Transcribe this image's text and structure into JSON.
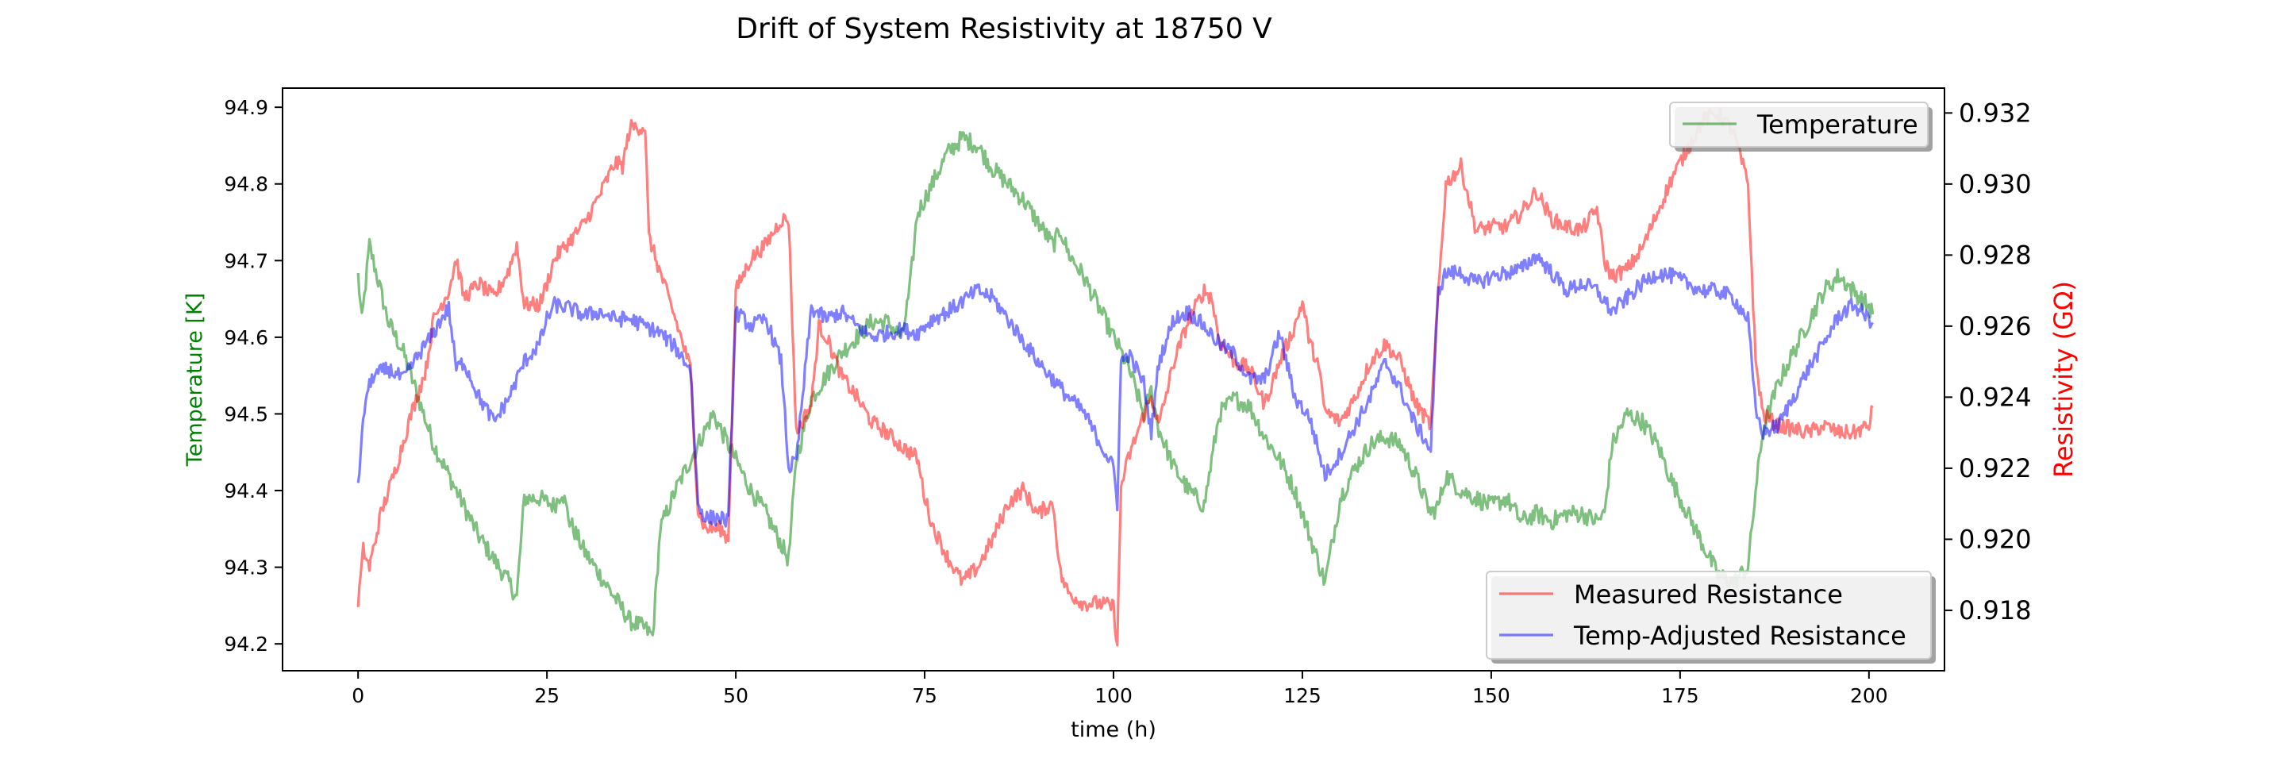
{
  "chart_data": {
    "type": "line",
    "title": "Drift of System Resistivity at 18750 V",
    "xlabel": "time (h)",
    "ylabel_left": "Temperature [K]",
    "ylabel_right": "Resistivity (GΩ)",
    "xlim": [
      -10,
      210
    ],
    "ylim_left": [
      94.165,
      94.925
    ],
    "ylim_right": [
      0.9163,
      0.9327
    ],
    "x_ticks": [
      0,
      25,
      50,
      75,
      100,
      125,
      150,
      175,
      200
    ],
    "x_tick_labels": [
      "0",
      "25",
      "50",
      "75",
      "100",
      "125",
      "150",
      "175",
      "200"
    ],
    "y_left_ticks": [
      94.2,
      94.3,
      94.4,
      94.5,
      94.6,
      94.7,
      94.8,
      94.9
    ],
    "y_left_tick_labels": [
      "94.2",
      "94.3",
      "94.4",
      "94.5",
      "94.6",
      "94.7",
      "94.8",
      "94.9"
    ],
    "y_right_ticks": [
      0.918,
      0.92,
      0.922,
      0.924,
      0.926,
      0.928,
      0.93,
      0.932
    ],
    "y_right_tick_labels": [
      "0.918",
      "0.920",
      "0.922",
      "0.924",
      "0.926",
      "0.928",
      "0.930",
      "0.932"
    ],
    "grid": false,
    "legend_left_axis": {
      "placement": "top-right",
      "entries": [
        "Temperature"
      ]
    },
    "legend_right_axis": {
      "placement": "bottom-right",
      "entries": [
        "Measured Resistance",
        "Temp-Adjusted Resistance"
      ]
    },
    "colors": {
      "temperature": "#008000",
      "measured": "#ff0000",
      "adjusted": "#0000ff",
      "left_axis_label": "#008000",
      "right_axis_label": "#ff0000"
    },
    "series": [
      {
        "name": "Temperature",
        "axis": "left",
        "color": "#008000",
        "x": [
          0,
          0.5,
          1.5,
          2.5,
          4,
          6,
          8,
          10,
          12,
          14,
          16,
          18,
          20,
          21,
          22,
          24,
          26,
          27,
          28,
          30,
          32,
          34,
          36,
          38,
          39,
          40,
          42,
          44,
          46,
          47,
          48,
          50,
          52,
          54,
          56,
          57,
          58,
          60,
          62,
          64,
          66,
          68,
          70,
          72,
          73,
          74,
          76,
          78,
          80,
          82,
          84,
          86,
          88,
          90,
          92,
          93,
          94,
          96,
          98,
          100,
          102,
          104,
          105,
          106,
          108,
          110,
          112,
          114,
          116,
          118,
          120,
          122,
          124,
          126,
          128,
          130,
          132,
          134,
          136,
          138,
          140,
          142,
          143,
          144,
          146,
          148,
          150,
          152,
          154,
          156,
          158,
          160,
          162,
          164,
          165,
          166,
          168,
          170,
          172,
          174,
          176,
          178,
          180,
          182,
          184,
          185,
          186,
          188,
          190,
          192,
          194,
          196,
          198,
          200,
          200.5
        ],
        "values": [
          94.68,
          94.62,
          94.72,
          94.68,
          94.62,
          94.58,
          94.52,
          94.46,
          94.42,
          94.38,
          94.34,
          94.31,
          94.28,
          94.26,
          94.39,
          94.39,
          94.38,
          94.4,
          94.36,
          94.32,
          94.29,
          94.26,
          94.23,
          94.22,
          94.21,
          94.35,
          94.4,
          94.44,
          94.48,
          94.5,
          94.48,
          94.44,
          94.4,
          94.37,
          94.33,
          94.31,
          94.44,
          94.52,
          94.55,
          94.58,
          94.6,
          94.62,
          94.62,
          94.6,
          94.66,
          94.76,
          94.8,
          94.84,
          94.86,
          94.85,
          94.82,
          94.8,
          94.78,
          94.75,
          94.72,
          94.74,
          94.71,
          94.68,
          94.64,
          94.6,
          94.56,
          94.5,
          94.53,
          94.48,
          94.43,
          94.4,
          94.38,
          94.5,
          94.52,
          94.51,
          94.47,
          94.44,
          94.4,
          94.34,
          94.28,
          94.39,
          94.43,
          94.46,
          94.47,
          94.46,
          94.42,
          94.37,
          94.38,
          94.42,
          94.4,
          94.39,
          94.38,
          94.39,
          94.36,
          94.37,
          94.36,
          94.37,
          94.37,
          94.36,
          94.37,
          94.46,
          94.5,
          94.49,
          94.46,
          94.41,
          94.37,
          94.33,
          94.29,
          94.28,
          94.3,
          94.4,
          94.48,
          94.54,
          94.58,
          94.62,
          94.66,
          94.68,
          94.66,
          94.64,
          94.63
        ]
      },
      {
        "name": "Measured Resistance",
        "axis": "right",
        "color": "#ff0000",
        "x": [
          0,
          0.7,
          1.5,
          3,
          5,
          7,
          9,
          10,
          12,
          13,
          14,
          16,
          18,
          20,
          21,
          22,
          24,
          25,
          26,
          28,
          30,
          32,
          34,
          35,
          36,
          38,
          38.5,
          40,
          42,
          44,
          45,
          46,
          48,
          49,
          50,
          52,
          54,
          56,
          57,
          58,
          60,
          61,
          62,
          64,
          66,
          68,
          70,
          72,
          74,
          75,
          76,
          78,
          80,
          82,
          84,
          86,
          88,
          90,
          91,
          92,
          93,
          94,
          96,
          98,
          100,
          100.5,
          101,
          102,
          104,
          105,
          106,
          108,
          110,
          112,
          113,
          114,
          116,
          118,
          120,
          122,
          124,
          125,
          126,
          127,
          128,
          130,
          132,
          134,
          136,
          138,
          140,
          141,
          142,
          143,
          144,
          146,
          148,
          150,
          152,
          154,
          156,
          158,
          160,
          162,
          164,
          165,
          166,
          168,
          170,
          172,
          174,
          176,
          178,
          180,
          182,
          184,
          185,
          186,
          188,
          190,
          192,
          194,
          196,
          198,
          200,
          200.5
        ],
        "values": [
          0.9182,
          0.9197,
          0.9192,
          0.9207,
          0.922,
          0.9235,
          0.9248,
          0.9262,
          0.927,
          0.9279,
          0.9268,
          0.9272,
          0.9268,
          0.9276,
          0.9283,
          0.9266,
          0.9266,
          0.9272,
          0.9279,
          0.9284,
          0.9289,
          0.9297,
          0.9306,
          0.9305,
          0.9316,
          0.9316,
          0.9285,
          0.9275,
          0.9262,
          0.9248,
          0.9208,
          0.9203,
          0.9203,
          0.92,
          0.927,
          0.9279,
          0.9283,
          0.929,
          0.929,
          0.923,
          0.9238,
          0.926,
          0.9257,
          0.9246,
          0.924,
          0.9233,
          0.923,
          0.9226,
          0.9223,
          0.9212,
          0.9204,
          0.9195,
          0.9188,
          0.9192,
          0.92,
          0.921,
          0.9214,
          0.9207,
          0.9209,
          0.921,
          0.919,
          0.9185,
          0.9182,
          0.9182,
          0.9181,
          0.917,
          0.9215,
          0.9223,
          0.9235,
          0.924,
          0.9232,
          0.925,
          0.9262,
          0.927,
          0.9268,
          0.9256,
          0.925,
          0.9248,
          0.9238,
          0.925,
          0.926,
          0.9267,
          0.9255,
          0.925,
          0.9236,
          0.9233,
          0.924,
          0.925,
          0.9255,
          0.925,
          0.9238,
          0.9235,
          0.9232,
          0.927,
          0.93,
          0.9305,
          0.9287,
          0.9288,
          0.9288,
          0.9292,
          0.9298,
          0.929,
          0.9288,
          0.9287,
          0.9293,
          0.9278,
          0.9274,
          0.9276,
          0.9282,
          0.9292,
          0.9302,
          0.931,
          0.9318,
          0.932,
          0.9315,
          0.93,
          0.925,
          0.9235,
          0.9232,
          0.9231,
          0.923,
          0.9232,
          0.923,
          0.923,
          0.9232,
          0.9237
        ]
      },
      {
        "name": "Temp-Adjusted Resistance",
        "axis": "right",
        "color": "#0000ff",
        "x": [
          0,
          1,
          2,
          4,
          6,
          8,
          10,
          11,
          12,
          13,
          14,
          16,
          18,
          20,
          22,
          24,
          25,
          26,
          28,
          30,
          32,
          34,
          36,
          38,
          40,
          42,
          44,
          45,
          46,
          48,
          49,
          50,
          52,
          54,
          56,
          57,
          58,
          60,
          62,
          64,
          66,
          68,
          70,
          72,
          74,
          76,
          78,
          80,
          82,
          84,
          86,
          88,
          90,
          92,
          94,
          96,
          98,
          100,
          100.5,
          101,
          102,
          104,
          105,
          106,
          108,
          110,
          112,
          114,
          116,
          118,
          120,
          122,
          124,
          126,
          128,
          130,
          132,
          134,
          136,
          138,
          140,
          141,
          142,
          143,
          144,
          146,
          148,
          150,
          152,
          154,
          156,
          158,
          160,
          162,
          164,
          166,
          168,
          170,
          172,
          174,
          176,
          178,
          180,
          182,
          184,
          185,
          186,
          188,
          190,
          192,
          194,
          196,
          198,
          200,
          200.5
        ],
        "values": [
          0.9216,
          0.924,
          0.9246,
          0.9248,
          0.9245,
          0.9252,
          0.9258,
          0.9262,
          0.9265,
          0.9248,
          0.925,
          0.924,
          0.9233,
          0.924,
          0.925,
          0.9255,
          0.9262,
          0.9266,
          0.9265,
          0.9263,
          0.9264,
          0.9262,
          0.9262,
          0.926,
          0.9258,
          0.9254,
          0.9248,
          0.921,
          0.9206,
          0.9206,
          0.9205,
          0.9264,
          0.926,
          0.9262,
          0.925,
          0.922,
          0.9222,
          0.9265,
          0.9262,
          0.9264,
          0.926,
          0.9257,
          0.9258,
          0.9259,
          0.9258,
          0.9262,
          0.9264,
          0.9267,
          0.927,
          0.9268,
          0.9262,
          0.9256,
          0.925,
          0.9245,
          0.924,
          0.9236,
          0.9228,
          0.922,
          0.921,
          0.925,
          0.9252,
          0.9244,
          0.923,
          0.925,
          0.9262,
          0.9264,
          0.926,
          0.9255,
          0.9252,
          0.9245,
          0.9245,
          0.9258,
          0.924,
          0.9234,
          0.9218,
          0.9224,
          0.9232,
          0.924,
          0.925,
          0.9242,
          0.9232,
          0.9229,
          0.9225,
          0.927,
          0.9275,
          0.9275,
          0.9272,
          0.9274,
          0.9275,
          0.9276,
          0.928,
          0.9275,
          0.927,
          0.9272,
          0.927,
          0.9264,
          0.9268,
          0.9272,
          0.9275,
          0.9274,
          0.9272,
          0.927,
          0.927,
          0.9268,
          0.9262,
          0.9236,
          0.923,
          0.9232,
          0.924,
          0.9248,
          0.9255,
          0.9263,
          0.9266,
          0.9262,
          0.9261
        ]
      }
    ]
  }
}
